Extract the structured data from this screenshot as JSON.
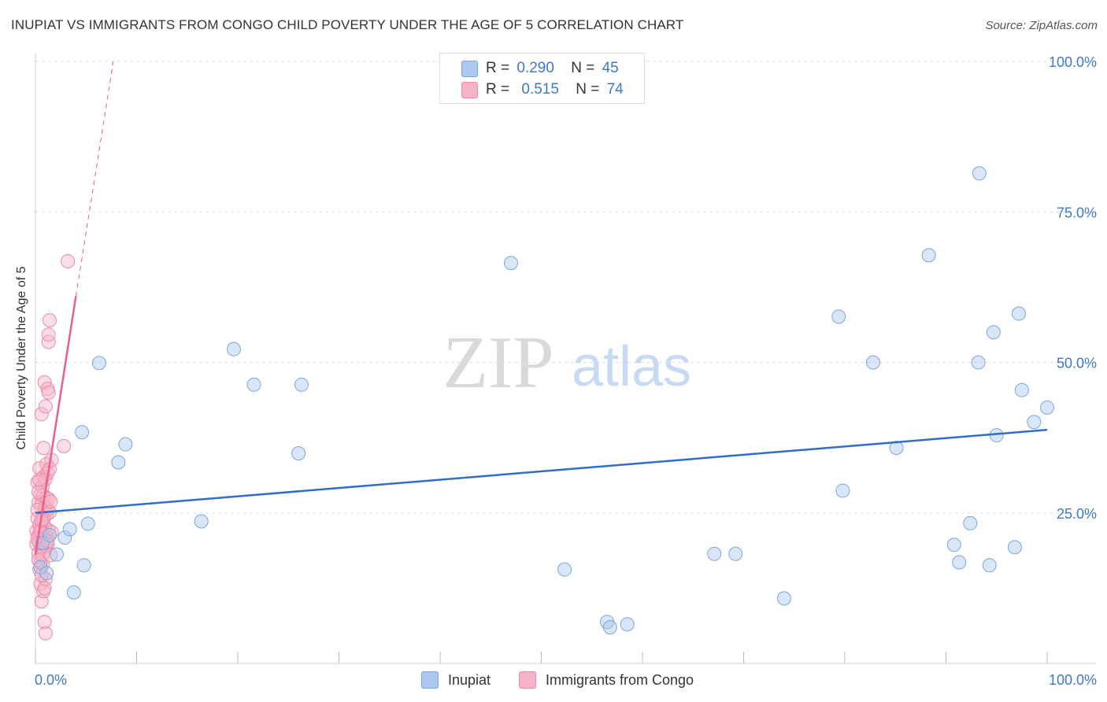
{
  "title": "INUPIAT VS IMMIGRANTS FROM CONGO CHILD POVERTY UNDER THE AGE OF 5 CORRELATION CHART",
  "source": "Source: ZipAtlas.com",
  "watermark": {
    "zip": "ZIP",
    "atlas": "atlas"
  },
  "legend_top": {
    "rows": [
      {
        "r_label": "R =",
        "r_value": "0.290",
        "n_label": "N =",
        "n_value": "45"
      },
      {
        "r_label": "R =",
        "r_value": "0.515",
        "n_label": "N =",
        "n_value": "74"
      }
    ]
  },
  "legend_bottom": {
    "series1": "Inupiat",
    "series2": "Immigrants from Congo"
  },
  "colors": {
    "blue_fill": "#aac8f0",
    "blue_stroke": "#7aa6e0",
    "blue_line": "#2f6fcb",
    "pink_fill": "#f6b3c6",
    "pink_stroke": "#ec8aa8",
    "pink_line": "#e8608c",
    "axis_text": "#3e78cc",
    "grid": "#dddddd"
  },
  "chart_data": {
    "type": "scatter",
    "title": "INUPIAT VS IMMIGRANTS FROM CONGO CHILD POVERTY UNDER THE AGE OF 5 CORRELATION CHART",
    "xlabel": "",
    "ylabel": "Child Poverty Under the Age of 5",
    "xlim": [
      0,
      100
    ],
    "ylim": [
      0,
      100
    ],
    "x_tick_labels": [
      "0.0%",
      "100.0%"
    ],
    "y_tick_labels": [
      {
        "value": 25,
        "label": "25.0%"
      },
      {
        "value": 50,
        "label": "50.0%"
      },
      {
        "value": 75,
        "label": "75.0%"
      },
      {
        "value": 100,
        "label": "100.0%"
      }
    ],
    "series": [
      {
        "name": "Inupiat",
        "R": 0.29,
        "N": 45,
        "trend": {
          "x": [
            0,
            100
          ],
          "y": [
            25.0,
            38.8
          ]
        },
        "points": [
          [
            0.5,
            16.0
          ],
          [
            0.7,
            20.0
          ],
          [
            1.1,
            15.0
          ],
          [
            1.4,
            21.3
          ],
          [
            2.1,
            18.1
          ],
          [
            2.9,
            20.9
          ],
          [
            3.4,
            22.3
          ],
          [
            3.8,
            11.8
          ],
          [
            4.6,
            38.4
          ],
          [
            4.8,
            16.3
          ],
          [
            5.2,
            23.2
          ],
          [
            6.3,
            49.9
          ],
          [
            8.2,
            33.4
          ],
          [
            8.9,
            36.4
          ],
          [
            16.4,
            23.6
          ],
          [
            19.6,
            52.2
          ],
          [
            21.6,
            46.3
          ],
          [
            26.0,
            34.9
          ],
          [
            26.3,
            46.3
          ],
          [
            47.0,
            66.5
          ],
          [
            52.3,
            15.6
          ],
          [
            56.5,
            6.9
          ],
          [
            56.8,
            6.0
          ],
          [
            58.5,
            6.5
          ],
          [
            67.1,
            18.2
          ],
          [
            69.2,
            18.2
          ],
          [
            74.0,
            10.8
          ],
          [
            79.4,
            57.6
          ],
          [
            79.8,
            28.7
          ],
          [
            82.8,
            50.0
          ],
          [
            85.1,
            35.8
          ],
          [
            88.3,
            67.8
          ],
          [
            90.8,
            19.7
          ],
          [
            91.3,
            16.8
          ],
          [
            92.4,
            23.3
          ],
          [
            93.2,
            50.0
          ],
          [
            93.3,
            81.4
          ],
          [
            94.3,
            16.3
          ],
          [
            94.7,
            55.0
          ],
          [
            95.0,
            37.9
          ],
          [
            96.8,
            19.3
          ],
          [
            97.2,
            58.1
          ],
          [
            97.5,
            45.4
          ],
          [
            98.7,
            40.1
          ],
          [
            100.0,
            42.5
          ]
        ]
      },
      {
        "name": "Immigrants from Congo",
        "R": 0.515,
        "N": 74,
        "trend": {
          "x": [
            0.0,
            4.0
          ],
          "y": [
            18.0,
            61.0
          ]
        },
        "trend_dashed": {
          "x": [
            4.0,
            7.7
          ],
          "y": [
            61.0,
            100.0
          ]
        },
        "points": [
          [
            0.1,
            22.0
          ],
          [
            0.1,
            19.8
          ],
          [
            0.2,
            24.1
          ],
          [
            0.2,
            30.1
          ],
          [
            0.3,
            26.7
          ],
          [
            0.3,
            21.3
          ],
          [
            0.3,
            18.3
          ],
          [
            0.4,
            15.6
          ],
          [
            0.4,
            20.1
          ],
          [
            0.4,
            32.4
          ],
          [
            0.5,
            28.0
          ],
          [
            0.5,
            22.5
          ],
          [
            0.5,
            13.2
          ],
          [
            0.6,
            41.4
          ],
          [
            0.6,
            26.4
          ],
          [
            0.6,
            19.0
          ],
          [
            0.6,
            10.3
          ],
          [
            0.7,
            29.4
          ],
          [
            0.7,
            23.7
          ],
          [
            0.7,
            21.0
          ],
          [
            0.7,
            16.4
          ],
          [
            0.8,
            35.8
          ],
          [
            0.8,
            31.0
          ],
          [
            0.8,
            27.9
          ],
          [
            0.8,
            20.5
          ],
          [
            0.8,
            12.0
          ],
          [
            0.9,
            46.7
          ],
          [
            0.9,
            25.4
          ],
          [
            0.9,
            22.8
          ],
          [
            0.9,
            18.6
          ],
          [
            0.9,
            6.9
          ],
          [
            1.0,
            5.0
          ],
          [
            1.0,
            42.7
          ],
          [
            1.0,
            30.6
          ],
          [
            1.0,
            26.0
          ],
          [
            1.0,
            21.6
          ],
          [
            1.0,
            14.0
          ],
          [
            1.1,
            33.1
          ],
          [
            1.1,
            27.5
          ],
          [
            1.1,
            24.8
          ],
          [
            1.1,
            20.8
          ],
          [
            1.2,
            45.6
          ],
          [
            1.2,
            31.6
          ],
          [
            1.2,
            25.6
          ],
          [
            1.2,
            19.8
          ],
          [
            1.3,
            53.4
          ],
          [
            1.3,
            54.6
          ],
          [
            1.3,
            45.0
          ],
          [
            1.3,
            27.3
          ],
          [
            1.3,
            22.1
          ],
          [
            1.4,
            57.0
          ],
          [
            1.4,
            32.3
          ],
          [
            1.4,
            25.1
          ],
          [
            1.5,
            26.9
          ],
          [
            1.6,
            33.8
          ],
          [
            1.6,
            21.8
          ],
          [
            0.3,
            28.5
          ],
          [
            0.5,
            16.8
          ],
          [
            0.2,
            25.5
          ],
          [
            0.4,
            23.0
          ],
          [
            0.6,
            14.7
          ],
          [
            0.9,
            12.5
          ],
          [
            0.7,
            18.0
          ],
          [
            0.2,
            20.6
          ],
          [
            0.4,
            30.5
          ],
          [
            0.8,
            24.0
          ],
          [
            1.0,
            19.5
          ],
          [
            0.3,
            17.2
          ],
          [
            0.5,
            21.9
          ],
          [
            1.2,
            20.3
          ],
          [
            1.5,
            18.0
          ],
          [
            0.6,
            23.8
          ],
          [
            2.8,
            36.1
          ],
          [
            3.2,
            66.8
          ]
        ]
      }
    ]
  }
}
